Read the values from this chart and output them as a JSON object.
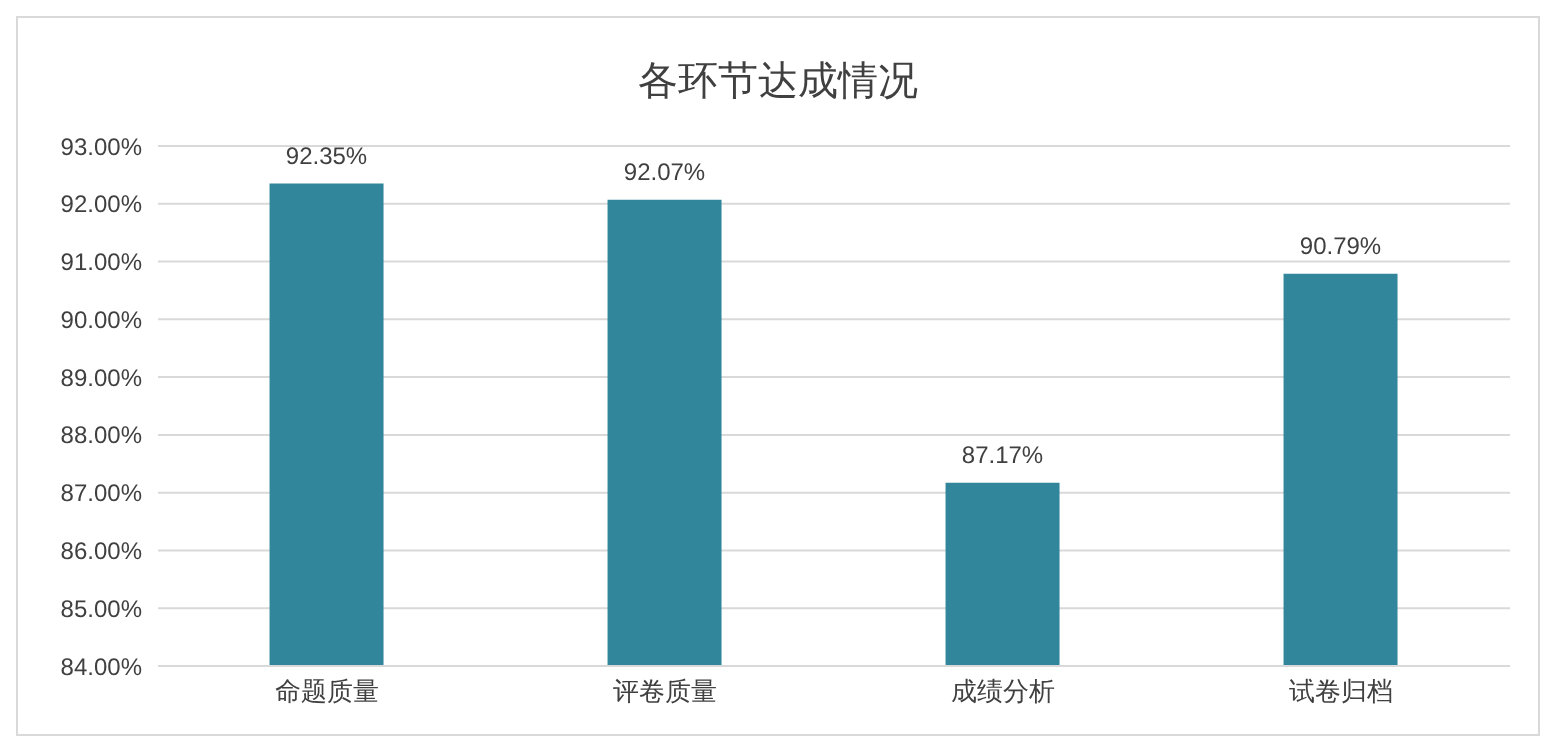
{
  "chart_data": {
    "type": "bar",
    "title": "各环节达成情况",
    "categories": [
      "命题质量",
      "评卷质量",
      "成绩分析",
      "试卷归档"
    ],
    "values": [
      92.35,
      92.07,
      87.17,
      90.79
    ],
    "value_labels": [
      "92.35%",
      "92.07%",
      "87.17%",
      "90.79%"
    ],
    "color": "#31869b",
    "ylim": [
      84,
      93
    ],
    "yticks": [
      {
        "value": 84,
        "label": "84.00%"
      },
      {
        "value": 85,
        "label": "85.00%"
      },
      {
        "value": 86,
        "label": "86.00%"
      },
      {
        "value": 87,
        "label": "87.00%"
      },
      {
        "value": 88,
        "label": "88.00%"
      },
      {
        "value": 89,
        "label": "89.00%"
      },
      {
        "value": 90,
        "label": "90.00%"
      },
      {
        "value": 91,
        "label": "91.00%"
      },
      {
        "value": 92,
        "label": "92.00%"
      },
      {
        "value": 93,
        "label": "93.00%"
      }
    ],
    "grid": "y",
    "legend": false
  }
}
